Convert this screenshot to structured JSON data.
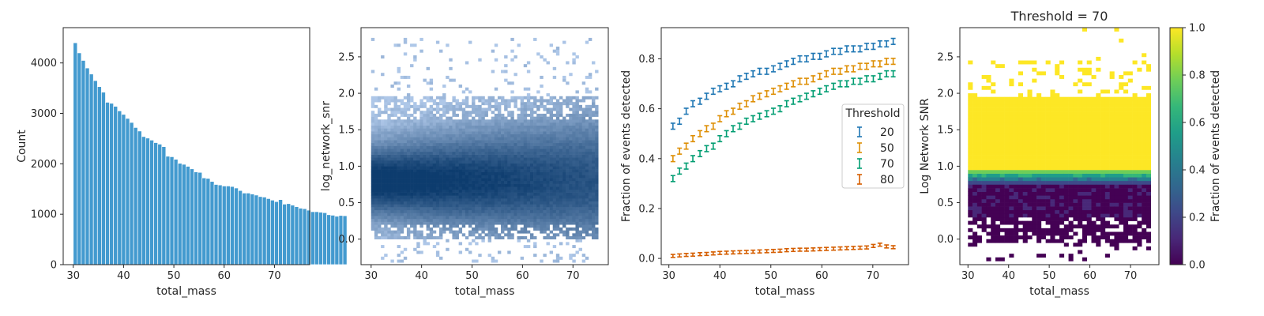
{
  "chart_data": [
    {
      "type": "bar",
      "xlabel": "total_mass",
      "ylabel": "Count",
      "xlim": [
        28,
        77
      ],
      "ylim": [
        0,
        4700
      ],
      "xticks": [
        30,
        40,
        50,
        60,
        70
      ],
      "yticks": [
        0,
        1000,
        2000,
        3000,
        4000
      ],
      "bin_start": 30,
      "bin_width": 0.8,
      "color": "#2f8fca",
      "values": [
        4400,
        4200,
        4050,
        3900,
        3780,
        3650,
        3530,
        3420,
        3220,
        3200,
        3140,
        3050,
        2980,
        2900,
        2820,
        2720,
        2650,
        2540,
        2510,
        2470,
        2420,
        2390,
        2340,
        2150,
        2140,
        2090,
        2010,
        1990,
        1950,
        1900,
        1840,
        1830,
        1720,
        1710,
        1650,
        1590,
        1580,
        1560,
        1560,
        1550,
        1520,
        1470,
        1420,
        1420,
        1400,
        1380,
        1350,
        1340,
        1310,
        1280,
        1250,
        1290,
        1200,
        1210,
        1180,
        1150,
        1120,
        1110,
        1080,
        1050,
        1050,
        1040,
        1030,
        990,
        980,
        960,
        975,
        970
      ]
    },
    {
      "type": "heatmap",
      "xlabel": "total_mass",
      "ylabel": "log_network_snr",
      "xlim": [
        28,
        77
      ],
      "ylim": [
        -0.35,
        2.9
      ],
      "xticks": [
        30,
        40,
        50,
        60,
        70
      ],
      "yticks": [
        0.0,
        0.5,
        1.0,
        1.5,
        2.0,
        2.5
      ],
      "x_range": [
        30,
        75
      ],
      "y_core_range": [
        0.0,
        1.95
      ],
      "peak_y": 0.8,
      "color": "#1f77b4"
    },
    {
      "type": "line",
      "xlabel": "total_mass",
      "ylabel": "Fraction of events detected",
      "xlim": [
        28.5,
        77
      ],
      "ylim": [
        -0.025,
        0.925
      ],
      "xticks": [
        30,
        40,
        50,
        60,
        70
      ],
      "yticks": [
        0.0,
        0.2,
        0.4,
        0.6,
        0.8
      ],
      "legend": {
        "title": "Threshold",
        "placement": "center-right"
      },
      "x": [
        30.8,
        32.1,
        33.4,
        34.7,
        36.1,
        37.4,
        38.7,
        40.0,
        41.3,
        42.6,
        43.9,
        45.2,
        46.5,
        47.8,
        49.2,
        50.5,
        51.8,
        53.1,
        54.4,
        55.7,
        57.0,
        58.3,
        59.6,
        60.9,
        62.3,
        63.6,
        64.9,
        66.2,
        67.5,
        68.8,
        70.1,
        71.4,
        72.7,
        74.0
      ],
      "series": [
        {
          "name": "20",
          "color": "#1f77b4",
          "values": [
            0.53,
            0.55,
            0.59,
            0.62,
            0.63,
            0.65,
            0.67,
            0.68,
            0.69,
            0.7,
            0.72,
            0.73,
            0.74,
            0.75,
            0.75,
            0.76,
            0.77,
            0.78,
            0.79,
            0.8,
            0.8,
            0.81,
            0.81,
            0.82,
            0.83,
            0.83,
            0.84,
            0.84,
            0.84,
            0.85,
            0.85,
            0.86,
            0.86,
            0.87
          ]
        },
        {
          "name": "50",
          "color": "#de8f05",
          "values": [
            0.4,
            0.43,
            0.45,
            0.48,
            0.5,
            0.52,
            0.53,
            0.56,
            0.58,
            0.59,
            0.61,
            0.62,
            0.64,
            0.65,
            0.66,
            0.67,
            0.68,
            0.69,
            0.7,
            0.71,
            0.71,
            0.72,
            0.73,
            0.74,
            0.75,
            0.75,
            0.76,
            0.76,
            0.77,
            0.77,
            0.78,
            0.78,
            0.79,
            0.79
          ]
        },
        {
          "name": "70",
          "color": "#029e73",
          "values": [
            0.32,
            0.35,
            0.37,
            0.4,
            0.42,
            0.44,
            0.45,
            0.48,
            0.5,
            0.52,
            0.53,
            0.55,
            0.56,
            0.57,
            0.58,
            0.59,
            0.6,
            0.62,
            0.63,
            0.64,
            0.65,
            0.66,
            0.67,
            0.68,
            0.69,
            0.7,
            0.7,
            0.71,
            0.71,
            0.72,
            0.72,
            0.73,
            0.74,
            0.74
          ]
        },
        {
          "name": "80",
          "color": "#d55e00",
          "values": [
            0.01,
            0.012,
            0.014,
            0.015,
            0.017,
            0.018,
            0.02,
            0.022,
            0.023,
            0.024,
            0.025,
            0.026,
            0.027,
            0.028,
            0.029,
            0.03,
            0.031,
            0.033,
            0.034,
            0.035,
            0.035,
            0.036,
            0.037,
            0.038,
            0.039,
            0.04,
            0.041,
            0.042,
            0.043,
            0.044,
            0.05,
            0.055,
            0.048,
            0.045
          ]
        }
      ]
    },
    {
      "type": "heatmap",
      "title": "Threshold = 70",
      "xlabel": "total_mass",
      "ylabel": "Log Network SNR",
      "xlim": [
        28,
        77
      ],
      "ylim": [
        -0.35,
        2.9
      ],
      "xticks": [
        30,
        40,
        50,
        60,
        70
      ],
      "yticks": [
        0.0,
        0.5,
        1.0,
        1.5,
        2.0,
        2.5
      ],
      "x_range": [
        30,
        75
      ],
      "colorbar": {
        "label": "Fraction of events detected",
        "range": [
          0.0,
          1.0
        ],
        "ticks": [
          0.0,
          0.2,
          0.4,
          0.6,
          0.8,
          1.0
        ],
        "colormap": "viridis"
      }
    }
  ]
}
